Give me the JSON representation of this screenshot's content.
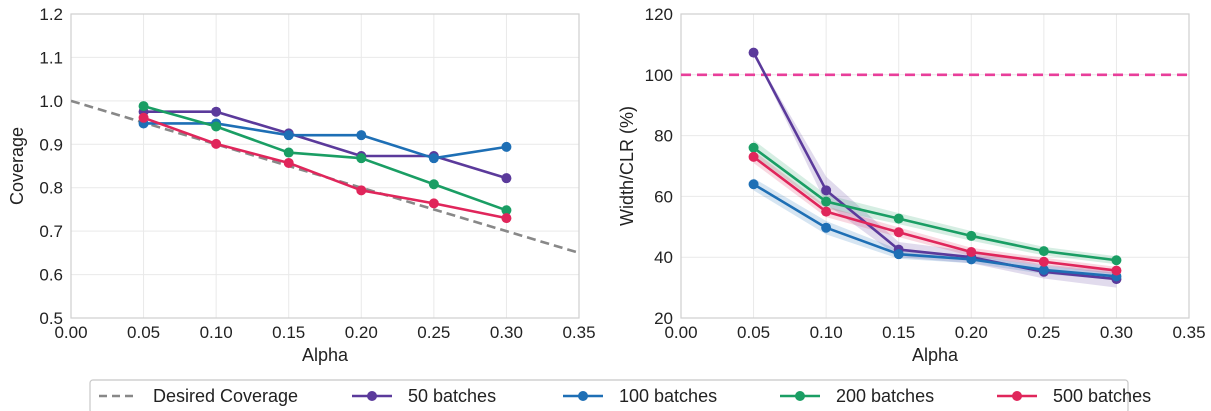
{
  "colors": {
    "reference": "#888888",
    "reference_line_right": "#e83e9a",
    "s50": "#5b3a9b",
    "s100": "#1e6fb5",
    "s200": "#1a9e64",
    "s500": "#e0265b"
  },
  "legend": {
    "reference_label": "Desired Coverage",
    "entries": [
      "50 batches",
      "100 batches",
      "200 batches",
      "500 batches"
    ]
  },
  "chart_data": [
    {
      "type": "line",
      "xlabel": "Alpha",
      "ylabel": "Coverage",
      "xlim": [
        0.0,
        0.35
      ],
      "ylim": [
        0.5,
        1.2
      ],
      "xticks": [
        "0.00",
        "0.05",
        "0.10",
        "0.15",
        "0.20",
        "0.25",
        "0.30",
        "0.35"
      ],
      "yticks": [
        "0.5",
        "0.6",
        "0.7",
        "0.8",
        "0.9",
        "1.0",
        "1.1",
        "1.2"
      ],
      "grid": true,
      "reference_line": {
        "name": "Desired Coverage",
        "x": [
          0.0,
          0.35
        ],
        "y": [
          1.0,
          0.65
        ]
      },
      "x": [
        0.05,
        0.1,
        0.15,
        0.2,
        0.25,
        0.3
      ],
      "series": [
        {
          "name": "50 batches",
          "values": [
            0.975,
            0.975,
            0.925,
            0.873,
            0.873,
            0.822
          ]
        },
        {
          "name": "100 batches",
          "values": [
            0.948,
            0.948,
            0.921,
            0.921,
            0.868,
            0.894
          ]
        },
        {
          "name": "200 batches",
          "values": [
            0.988,
            0.941,
            0.881,
            0.868,
            0.808,
            0.748
          ]
        },
        {
          "name": "500 batches",
          "values": [
            0.961,
            0.901,
            0.857,
            0.794,
            0.764,
            0.73
          ]
        }
      ]
    },
    {
      "type": "line",
      "xlabel": "Alpha",
      "ylabel": "Width/CLR (%)",
      "xlim": [
        0.0,
        0.35
      ],
      "ylim": [
        20,
        120
      ],
      "xticks": [
        "0.00",
        "0.05",
        "0.10",
        "0.15",
        "0.20",
        "0.25",
        "0.30",
        "0.35"
      ],
      "yticks": [
        "20",
        "40",
        "60",
        "80",
        "100",
        "120"
      ],
      "grid": true,
      "reference_line": {
        "y": 100,
        "style": "dashed"
      },
      "x": [
        0.05,
        0.1,
        0.15,
        0.2,
        0.25,
        0.3
      ],
      "series": [
        {
          "name": "50 batches",
          "values": [
            107.3,
            62.0,
            42.5,
            40.0,
            35.2,
            32.8
          ],
          "band": [
            [
              107.3,
              107.3
            ],
            [
              57.5,
              66.5
            ],
            [
              40.0,
              45.0
            ],
            [
              38.0,
              42.0
            ],
            [
              33.0,
              37.5
            ],
            [
              30.0,
              35.5
            ]
          ]
        },
        {
          "name": "100 batches",
          "values": [
            64.0,
            49.7,
            41.0,
            39.3,
            35.8,
            33.7
          ],
          "band": [
            [
              62.0,
              66.0
            ],
            [
              47.5,
              51.9
            ],
            [
              39.5,
              42.5
            ],
            [
              38.0,
              40.6
            ],
            [
              34.5,
              37.1
            ],
            [
              32.5,
              34.9
            ]
          ]
        },
        {
          "name": "200 batches",
          "values": [
            76.0,
            58.3,
            52.7,
            47.0,
            42.0,
            39.0
          ],
          "band": [
            [
              73.5,
              78.5
            ],
            [
              56.0,
              60.6
            ],
            [
              50.9,
              54.5
            ],
            [
              45.4,
              48.6
            ],
            [
              40.6,
              43.4
            ],
            [
              37.7,
              40.3
            ]
          ]
        },
        {
          "name": "500 batches",
          "values": [
            73.0,
            55.0,
            48.2,
            41.7,
            38.5,
            35.6
          ],
          "band": [
            [
              71.0,
              75.0
            ],
            [
              53.2,
              56.8
            ],
            [
              46.6,
              49.8
            ],
            [
              40.3,
              43.1
            ],
            [
              37.2,
              39.8
            ],
            [
              34.4,
              36.8
            ]
          ]
        }
      ]
    }
  ]
}
